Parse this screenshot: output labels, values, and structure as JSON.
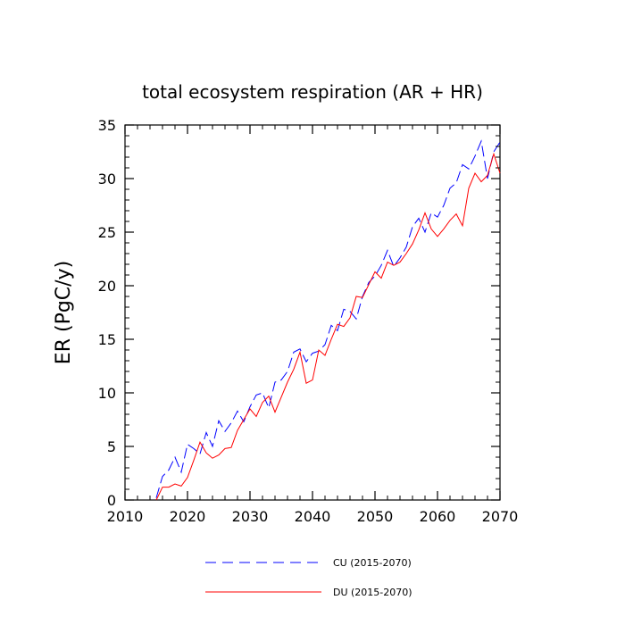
{
  "chart_data": {
    "type": "line",
    "title": "total ecosystem respiration (AR + HR)",
    "xlabel": "",
    "ylabel": "ER  (PgC/y)",
    "xlim": [
      2010,
      2070
    ],
    "ylim": [
      0,
      35
    ],
    "xticks": [
      2010,
      2020,
      2030,
      2040,
      2050,
      2060,
      2070
    ],
    "yticks": [
      0,
      5,
      10,
      15,
      20,
      25,
      30,
      35
    ],
    "x": [
      2015,
      2016,
      2017,
      2018,
      2019,
      2020,
      2021,
      2022,
      2023,
      2024,
      2025,
      2026,
      2027,
      2028,
      2029,
      2030,
      2031,
      2032,
      2033,
      2034,
      2035,
      2036,
      2037,
      2038,
      2039,
      2040,
      2041,
      2042,
      2043,
      2044,
      2045,
      2046,
      2047,
      2048,
      2049,
      2050,
      2051,
      2052,
      2053,
      2054,
      2055,
      2056,
      2057,
      2058,
      2059,
      2060,
      2061,
      2062,
      2063,
      2064,
      2065,
      2066,
      2067,
      2068,
      2069,
      2070
    ],
    "series": [
      {
        "name": "CU (2015-2070)",
        "color": "#0000ff",
        "dash": "dashed",
        "values": [
          0.2,
          2.2,
          2.8,
          4.0,
          2.6,
          5.2,
          4.8,
          4.3,
          6.3,
          5.0,
          7.4,
          6.4,
          7.2,
          8.3,
          7.3,
          8.7,
          9.8,
          10.0,
          8.6,
          11.0,
          11.2,
          12.0,
          13.8,
          14.1,
          12.9,
          13.7,
          13.9,
          14.5,
          16.3,
          15.8,
          17.8,
          17.6,
          16.9,
          19.0,
          20.3,
          20.9,
          21.9,
          23.3,
          21.8,
          22.6,
          23.6,
          25.5,
          26.3,
          25.0,
          26.8,
          26.4,
          27.5,
          29.1,
          29.6,
          31.3,
          30.9,
          32.1,
          33.5,
          30.0,
          32.5,
          33.4
        ]
      },
      {
        "name": "DU (2015-2070)",
        "color": "#ff0000",
        "dash": "solid",
        "values": [
          0.0,
          1.2,
          1.2,
          1.5,
          1.3,
          2.1,
          3.7,
          5.4,
          4.4,
          3.9,
          4.2,
          4.8,
          4.9,
          6.5,
          7.5,
          8.5,
          7.8,
          9.1,
          9.7,
          8.2,
          9.6,
          11.0,
          12.2,
          13.8,
          10.9,
          11.2,
          14.0,
          13.5,
          15.0,
          16.4,
          16.2,
          17.0,
          19.0,
          18.9,
          20.1,
          21.3,
          20.7,
          22.2,
          21.9,
          22.2,
          23.0,
          23.9,
          25.2,
          26.8,
          25.3,
          24.6,
          25.3,
          26.1,
          26.7,
          25.6,
          29.1,
          30.5,
          29.7,
          30.3,
          32.3,
          30.5
        ]
      }
    ]
  }
}
